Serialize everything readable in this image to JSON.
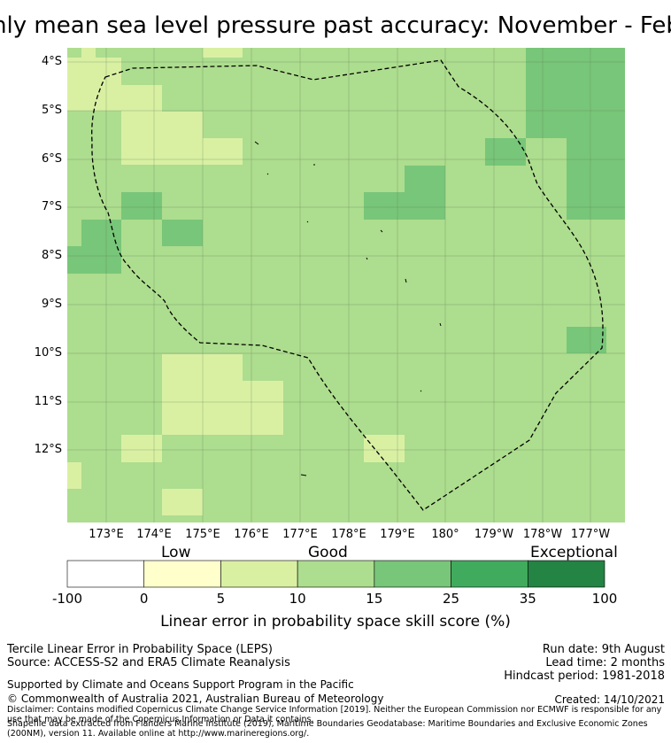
{
  "title": "hly mean sea level pressure past accuracy: November - Feb",
  "map": {
    "lon_ticks": [
      "173°E",
      "174°E",
      "175°E",
      "176°E",
      "177°E",
      "178°E",
      "179°E",
      "180°",
      "179°W",
      "178°W",
      "177°W"
    ],
    "lat_ticks": [
      "4°S",
      "5°S",
      "6°S",
      "7°S",
      "8°S",
      "9°S",
      "10°S",
      "11°S",
      "12°S"
    ],
    "boundary_style": "dashed",
    "grid": true
  },
  "legend": {
    "category_labels": [
      "Low",
      "Good",
      "Exceptional"
    ],
    "tick_labels": [
      "-100",
      "0",
      "5",
      "10",
      "15",
      "25",
      "35",
      "100"
    ],
    "colors": [
      "#ffffff",
      "#ffffcc",
      "#d9f0a3",
      "#addd8e",
      "#78c679",
      "#41ab5d",
      "#238443"
    ],
    "title": "Linear error in probability space skill score (%)"
  },
  "footer": {
    "line1": "Tercile Linear Error in Probability Space (LEPS)",
    "line2": "Source: ACCESS-S2 and ERA5 Climate Reanalysis",
    "run_date": "Run date: 9th August",
    "lead_time": "Lead time: 2 months",
    "hindcast": "Hindcast period: 1981-2018",
    "supported": "Supported by Climate and Oceans Support Program in the Pacific",
    "copyright": "© Commonwealth of Australia 2021, Australian Bureau of Meteorology",
    "created": "Created: 14/10/2021",
    "disclaimer": "Disclaimer: Contains modified Copernicus Climate Change Service Information [2019]. Neither the European Commission nor ECMWF is responsible for any use that may be made of the Copernicus Information or Data it contains.",
    "shapefile": "Shapefile data extracted from Flanders Marine Institute (2019), Maritime Boundaries Geodatabase: Maritime Boundaries and Exclusive Economic Zones (200NM), version 11. Available online at http://www.marineregions.org/."
  }
}
